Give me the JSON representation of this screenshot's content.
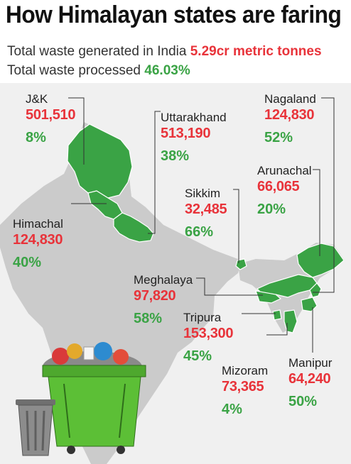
{
  "header": {
    "title": "How Himalayan states are faring",
    "generated_label": "Total waste generated in India",
    "generated_value": "5.29cr metric tonnes",
    "processed_label": "Total waste processed",
    "processed_value": "46.03%"
  },
  "colors": {
    "tonnes": "#e8333a",
    "percent": "#3aa345",
    "state_fill": "#3aa345",
    "country_fill": "#cbcbcb",
    "background": "#f0f0f0"
  },
  "states": [
    {
      "name": "J&K",
      "tonnes": "501,510",
      "percent": "8%"
    },
    {
      "name": "Uttarakhand",
      "tonnes": "513,190",
      "percent": "38%"
    },
    {
      "name": "Nagaland",
      "tonnes": "124,830",
      "percent": "52%"
    },
    {
      "name": "Arunachal",
      "tonnes": "66,065",
      "percent": "20%"
    },
    {
      "name": "Sikkim",
      "tonnes": "32,485",
      "percent": "66%"
    },
    {
      "name": "Himachal",
      "tonnes": "124,830",
      "percent": "40%"
    },
    {
      "name": "Meghalaya",
      "tonnes": "97,820",
      "percent": "58%"
    },
    {
      "name": "Tripura",
      "tonnes": "153,300",
      "percent": "45%"
    },
    {
      "name": "Mizoram",
      "tonnes": "73,365",
      "percent": "4%"
    },
    {
      "name": "Manipur",
      "tonnes": "64,240",
      "percent": "50%"
    }
  ],
  "illustration": {
    "icon": "garbage-dumpster-icon"
  }
}
